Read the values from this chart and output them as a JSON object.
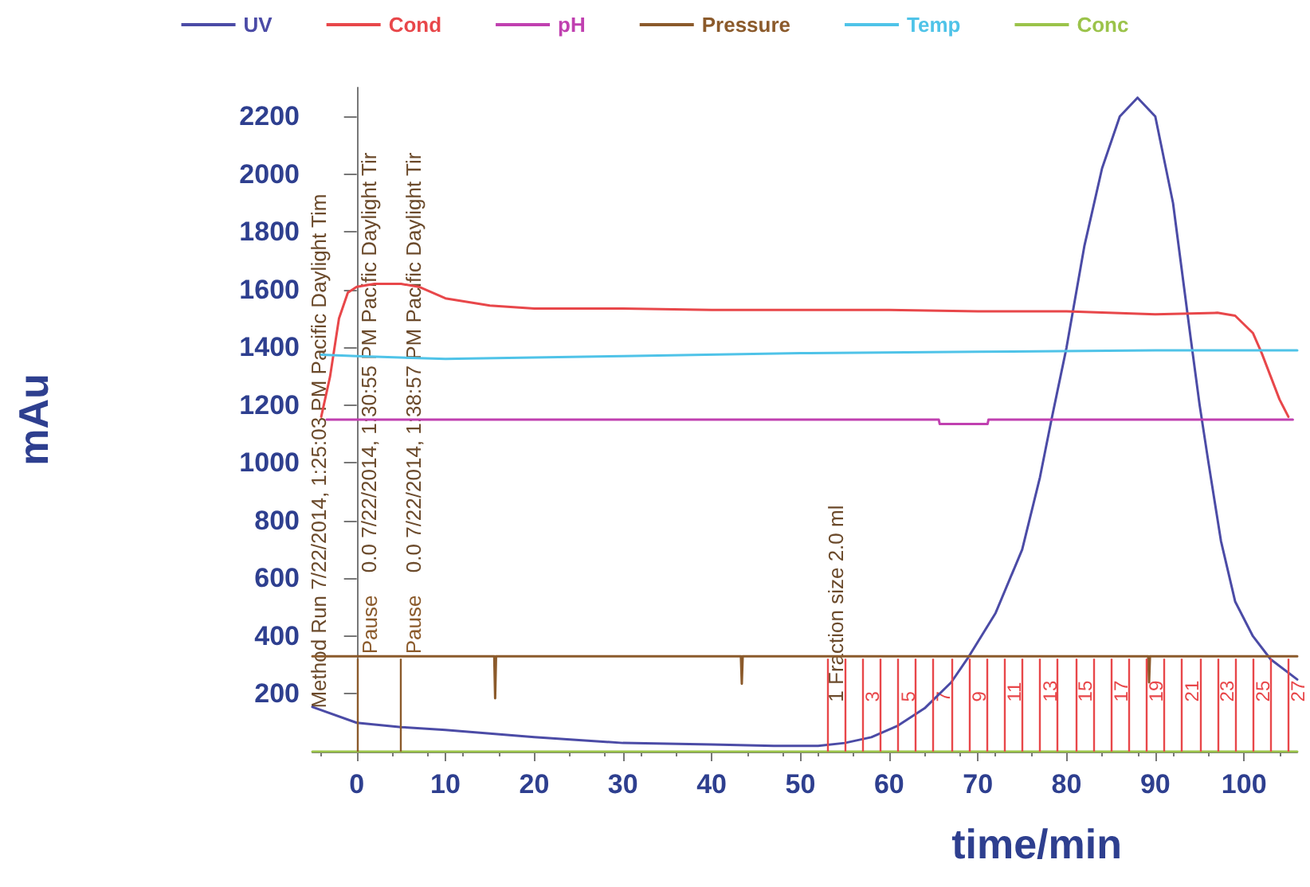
{
  "chart_data": {
    "type": "line",
    "xlabel": "time/min",
    "ylabel": "mAu",
    "xlim": [
      -5,
      106
    ],
    "ylim": [
      0,
      2300
    ],
    "xticks": [
      0,
      10,
      20,
      30,
      40,
      50,
      60,
      70,
      80,
      90,
      100
    ],
    "yticks": [
      200,
      400,
      600,
      800,
      1000,
      1200,
      1400,
      1600,
      1800,
      2000,
      2200
    ],
    "grid": false,
    "legend": "top",
    "marker": "none",
    "line_style": "solid",
    "series": [
      {
        "name": "UV",
        "color": "#4b4ba6",
        "x": [
          -5,
          0,
          5,
          10,
          20,
          30,
          40,
          47,
          52,
          55,
          58,
          61,
          64,
          67,
          69,
          72,
          75,
          77,
          78.3,
          80,
          82,
          84,
          86,
          88,
          90,
          92,
          94,
          95,
          96,
          97.4,
          99,
          101,
          103,
          106
        ],
        "values": [
          155,
          100,
          85,
          75,
          50,
          30,
          25,
          20,
          20,
          30,
          50,
          90,
          150,
          240,
          330,
          480,
          700,
          950,
          1150,
          1400,
          1750,
          2020,
          2200,
          2265,
          2200,
          1900,
          1430,
          1200,
          1000,
          730,
          520,
          400,
          320,
          250
        ]
      },
      {
        "name": "Cond",
        "color": "#e8474a",
        "x": [
          -4,
          -3,
          -2,
          -1,
          0,
          2,
          5,
          7,
          10,
          15,
          20,
          30,
          40,
          50,
          60,
          70,
          80,
          90,
          97,
          99,
          101,
          102,
          103,
          104,
          105
        ],
        "values": [
          1160,
          1300,
          1500,
          1590,
          1610,
          1620,
          1620,
          1610,
          1570,
          1545,
          1535,
          1535,
          1530,
          1530,
          1530,
          1525,
          1525,
          1515,
          1520,
          1510,
          1450,
          1380,
          1300,
          1220,
          1160
        ]
      },
      {
        "name": "pH",
        "color": "#c040b0",
        "x": [
          -3.4,
          65.6,
          65.7,
          71.1,
          71.2,
          105.5
        ],
        "values": [
          1150,
          1150,
          1135,
          1135,
          1150,
          1150
        ]
      },
      {
        "name": "Pressure",
        "color": "#8b5a2b",
        "x": [
          -5,
          15.5,
          15.6,
          15.7,
          43.3,
          43.4,
          43.5,
          89.2,
          89.3,
          89.4,
          106
        ],
        "values": [
          330,
          330,
          185,
          330,
          330,
          235,
          330,
          330,
          240,
          330,
          330
        ]
      },
      {
        "name": "Temp",
        "color": "#4fc3e8",
        "x": [
          -4,
          0,
          10,
          30,
          50,
          70,
          90,
          106
        ],
        "values": [
          1375,
          1370,
          1360,
          1370,
          1380,
          1385,
          1390,
          1390
        ]
      },
      {
        "name": "Conc",
        "color": "#9bc34a",
        "x": [
          -5,
          106
        ],
        "values": [
          0,
          0
        ]
      }
    ],
    "ref_lines": [
      {
        "axis": "x",
        "value": 0,
        "label": "Pause",
        "color": "#8b5a2b"
      },
      {
        "axis": "x",
        "value": 5,
        "label": "Pause",
        "color": "#8b5a2b"
      },
      {
        "axis": "x",
        "value": 53,
        "color": "#e8474a"
      },
      {
        "axis": "x",
        "value": 55,
        "color": "#e8474a"
      },
      {
        "axis": "x",
        "value": 57,
        "color": "#e8474a"
      },
      {
        "axis": "x",
        "value": 59,
        "color": "#e8474a"
      },
      {
        "axis": "x",
        "value": 61,
        "color": "#e8474a"
      },
      {
        "axis": "x",
        "value": 63,
        "color": "#e8474a"
      },
      {
        "axis": "x",
        "value": 65,
        "color": "#e8474a"
      },
      {
        "axis": "x",
        "value": 67,
        "color": "#e8474a"
      },
      {
        "axis": "x",
        "value": 69,
        "color": "#e8474a"
      },
      {
        "axis": "x",
        "value": 71,
        "color": "#e8474a"
      },
      {
        "axis": "x",
        "value": 73,
        "color": "#e8474a"
      },
      {
        "axis": "x",
        "value": 75,
        "color": "#e8474a"
      },
      {
        "axis": "x",
        "value": 77,
        "color": "#e8474a"
      },
      {
        "axis": "x",
        "value": 79,
        "color": "#e8474a"
      },
      {
        "axis": "x",
        "value": 81,
        "color": "#e8474a"
      },
      {
        "axis": "x",
        "value": 83,
        "color": "#e8474a"
      },
      {
        "axis": "x",
        "value": 85,
        "color": "#e8474a"
      },
      {
        "axis": "x",
        "value": 87,
        "color": "#e8474a"
      },
      {
        "axis": "x",
        "value": 89,
        "color": "#e8474a"
      },
      {
        "axis": "x",
        "value": 91,
        "color": "#e8474a"
      },
      {
        "axis": "x",
        "value": 93,
        "color": "#e8474a"
      },
      {
        "axis": "x",
        "value": 95,
        "color": "#e8474a"
      },
      {
        "axis": "x",
        "value": 97,
        "color": "#e8474a"
      },
      {
        "axis": "x",
        "value": 99,
        "color": "#e8474a"
      },
      {
        "axis": "x",
        "value": 101,
        "color": "#e8474a"
      },
      {
        "axis": "x",
        "value": 103,
        "color": "#e8474a"
      },
      {
        "axis": "x",
        "value": 105,
        "color": "#e8474a"
      }
    ],
    "annotations": [
      "Method Run 7/22/2014, 1:25:03 PM Pacific Daylight Tim",
      "0.0 7/22/2014, 1:30:55 PM Pacific Daylight Tir",
      "0.0 7/22/2014, 1:38:57 PM Pacific Daylight Tir",
      "1 Fraction size 2.0 ml",
      "3",
      "5",
      "7",
      "9",
      "11",
      "13",
      "15",
      "17",
      "19",
      "21",
      "23",
      "25",
      "27"
    ]
  }
}
